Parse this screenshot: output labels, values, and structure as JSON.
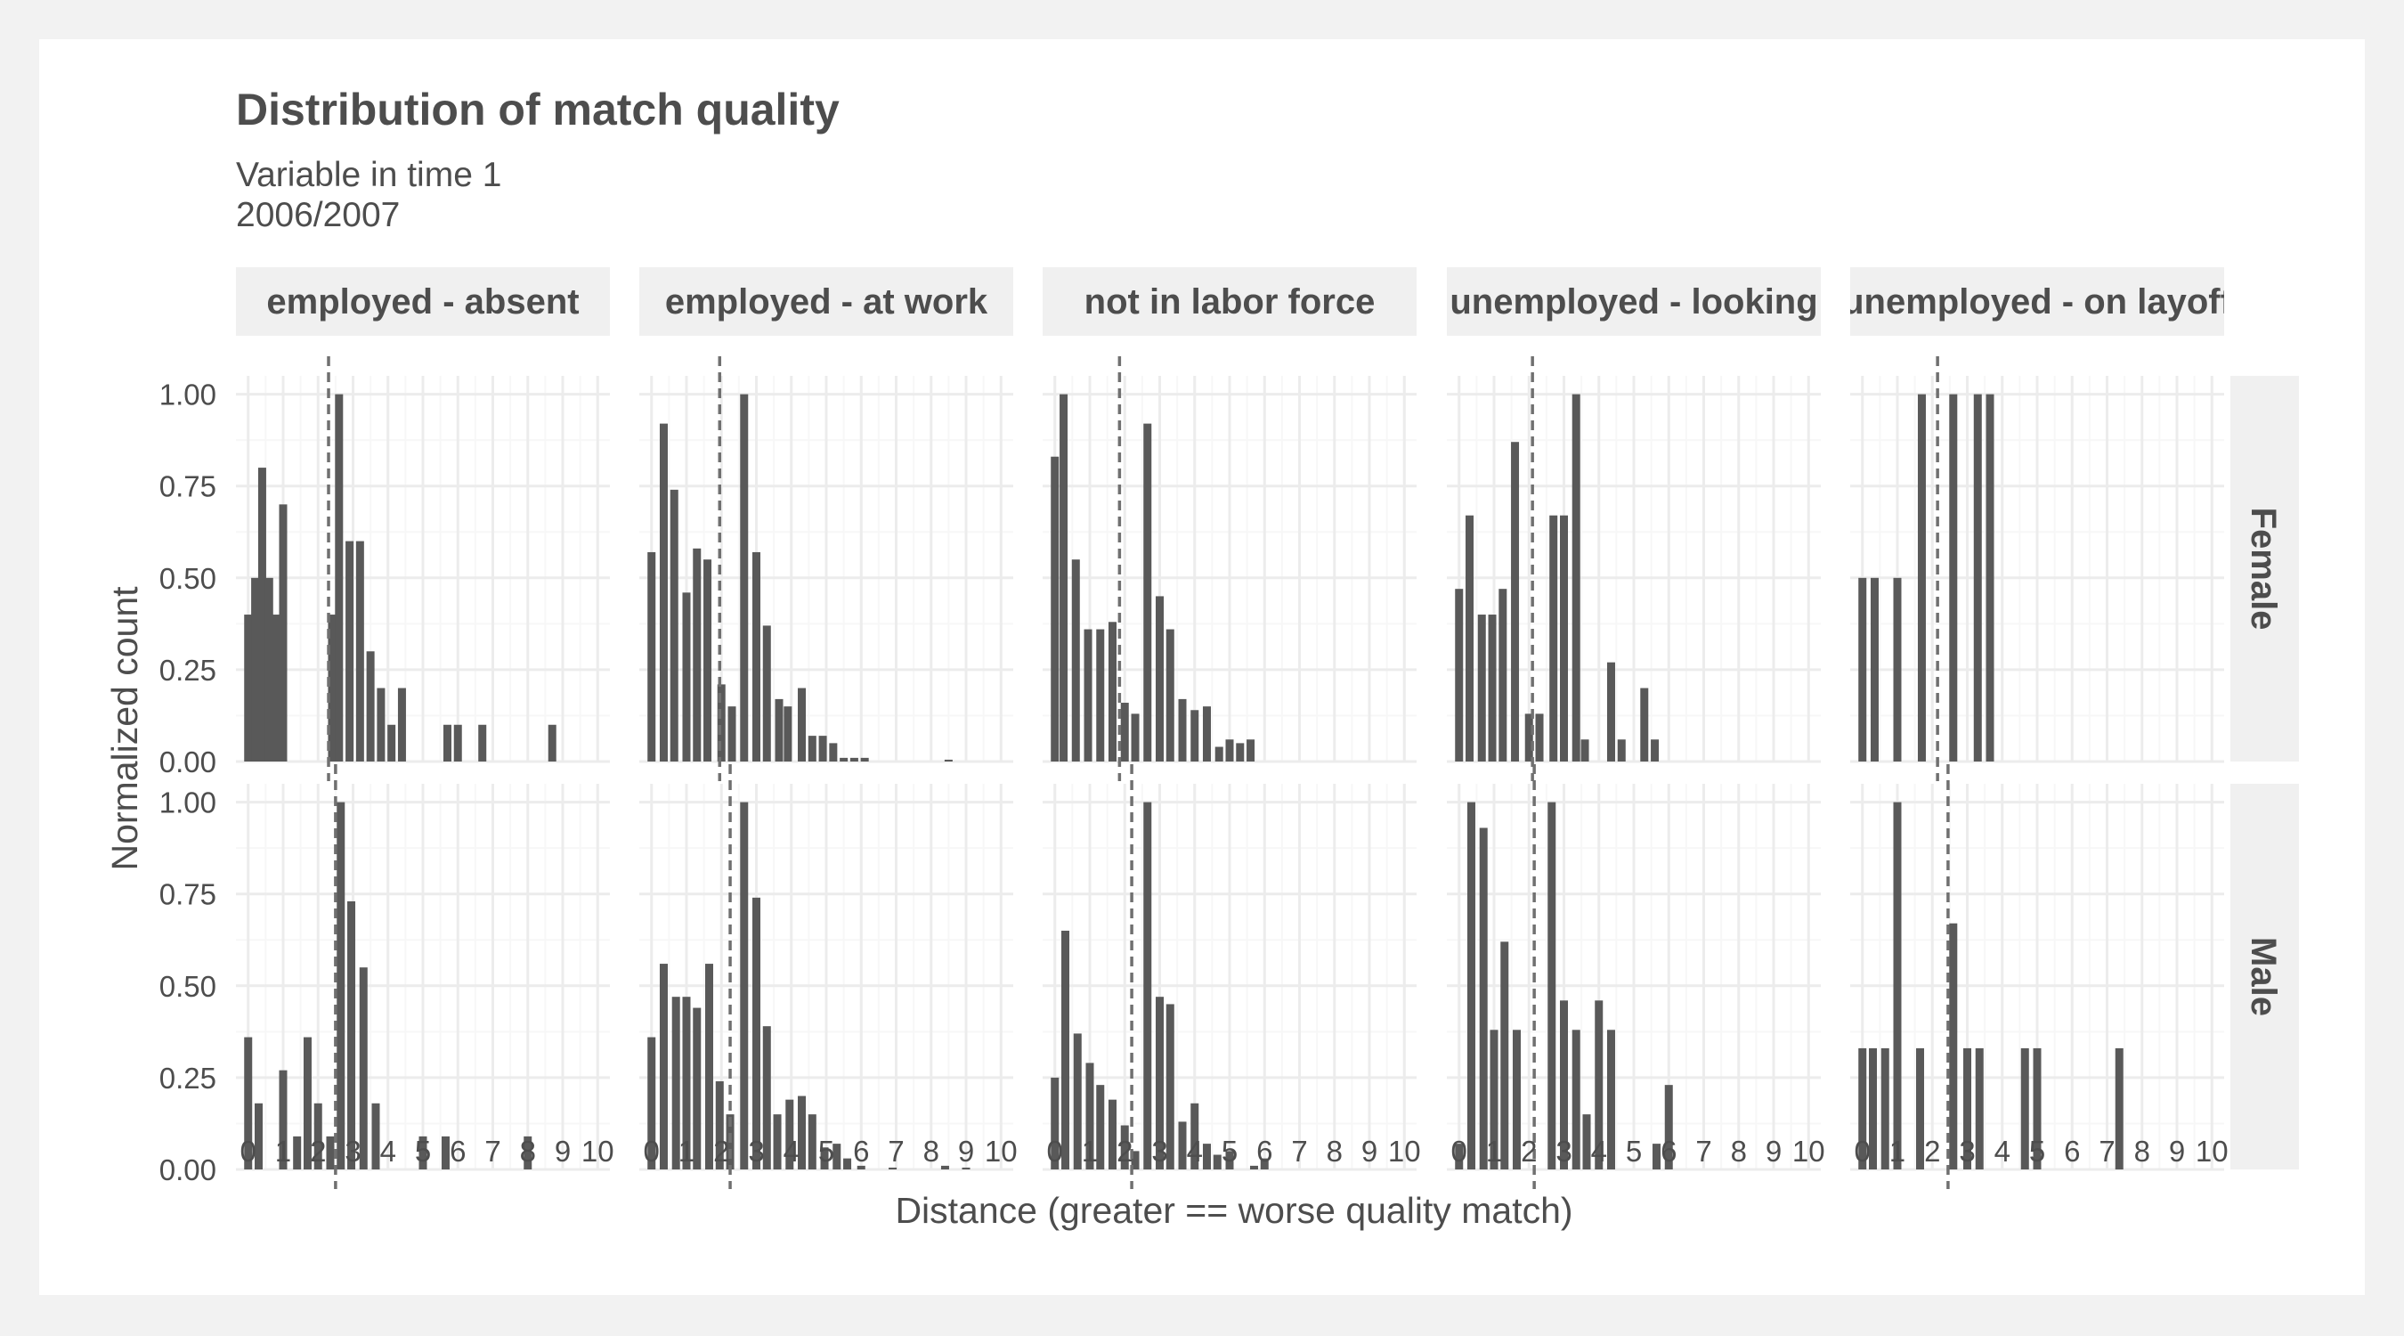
{
  "chart_data": {
    "type": "bar",
    "title": "Distribution of match quality",
    "subtitle_lines": [
      "Variable in time 1",
      "2006/2007"
    ],
    "xlabel": "Distance (greater == worse quality match)",
    "ylabel": "Normalized count",
    "xlim": [
      -0.35,
      10.35
    ],
    "ylim": [
      0,
      1.05
    ],
    "x_ticks": [
      "0",
      "1",
      "2",
      "3",
      "4",
      "5",
      "6",
      "7",
      "8",
      "9",
      "10"
    ],
    "y_ticks": [
      "0.00",
      "0.25",
      "0.50",
      "0.75",
      "1.00"
    ],
    "grid": true,
    "bar_color": "#595959",
    "mean_line_style": "dashed",
    "column_facets": [
      "employed - absent",
      "employed - at work",
      "not in labor force",
      "unemployed - looking",
      "unemployed - on layoff"
    ],
    "row_facets": [
      "Female",
      "Male"
    ],
    "panels": [
      {
        "row": "Female",
        "col": "employed - absent",
        "mean": 2.3,
        "bars": [
          [
            0,
            0.4
          ],
          [
            0.2,
            0.5
          ],
          [
            0.4,
            0.8
          ],
          [
            0.6,
            0.5
          ],
          [
            0.8,
            0.4
          ],
          [
            1.0,
            0.7
          ],
          [
            2.4,
            0.4
          ],
          [
            2.6,
            1.0
          ],
          [
            2.9,
            0.6
          ],
          [
            3.2,
            0.6
          ],
          [
            3.5,
            0.3
          ],
          [
            3.8,
            0.2
          ],
          [
            4.1,
            0.1
          ],
          [
            4.4,
            0.2
          ],
          [
            5.7,
            0.1
          ],
          [
            6.0,
            0.1
          ],
          [
            6.7,
            0.1
          ],
          [
            8.7,
            0.1
          ]
        ]
      },
      {
        "row": "Female",
        "col": "employed - at work",
        "mean": 1.95,
        "bars": [
          [
            0,
            0.57
          ],
          [
            0.35,
            0.92
          ],
          [
            0.65,
            0.74
          ],
          [
            1.0,
            0.46
          ],
          [
            1.3,
            0.58
          ],
          [
            1.6,
            0.55
          ],
          [
            2.0,
            0.21
          ],
          [
            2.3,
            0.15
          ],
          [
            2.65,
            1.0
          ],
          [
            3.0,
            0.57
          ],
          [
            3.3,
            0.37
          ],
          [
            3.65,
            0.17
          ],
          [
            3.9,
            0.15
          ],
          [
            4.3,
            0.2
          ],
          [
            4.6,
            0.07
          ],
          [
            4.9,
            0.07
          ],
          [
            5.2,
            0.05
          ],
          [
            5.5,
            0.01
          ],
          [
            5.8,
            0.01
          ],
          [
            6.1,
            0.01
          ],
          [
            8.5,
            0.005
          ]
        ]
      },
      {
        "row": "Female",
        "col": "not in labor force",
        "mean": 1.85,
        "bars": [
          [
            0,
            0.83
          ],
          [
            0.25,
            1.0
          ],
          [
            0.6,
            0.55
          ],
          [
            0.95,
            0.36
          ],
          [
            1.3,
            0.36
          ],
          [
            1.65,
            0.38
          ],
          [
            2.0,
            0.16
          ],
          [
            2.3,
            0.13
          ],
          [
            2.65,
            0.92
          ],
          [
            3.0,
            0.45
          ],
          [
            3.3,
            0.36
          ],
          [
            3.65,
            0.17
          ],
          [
            4.0,
            0.14
          ],
          [
            4.35,
            0.15
          ],
          [
            4.7,
            0.04
          ],
          [
            5.0,
            0.06
          ],
          [
            5.3,
            0.05
          ],
          [
            5.6,
            0.06
          ]
        ]
      },
      {
        "row": "Female",
        "col": "unemployed - looking",
        "mean": 2.1,
        "bars": [
          [
            0,
            0.47
          ],
          [
            0.3,
            0.67
          ],
          [
            0.65,
            0.4
          ],
          [
            0.95,
            0.4
          ],
          [
            1.25,
            0.47
          ],
          [
            1.6,
            0.87
          ],
          [
            2.0,
            0.13
          ],
          [
            2.3,
            0.13
          ],
          [
            2.7,
            0.67
          ],
          [
            3.0,
            0.67
          ],
          [
            3.35,
            1.0
          ],
          [
            3.6,
            0.06
          ],
          [
            4.35,
            0.27
          ],
          [
            4.65,
            0.06
          ],
          [
            5.3,
            0.2
          ],
          [
            5.6,
            0.06
          ]
        ]
      },
      {
        "row": "Female",
        "col": "unemployed - on layoff",
        "mean": 2.15,
        "bars": [
          [
            0,
            0.5
          ],
          [
            0.35,
            0.5
          ],
          [
            1.0,
            0.5
          ],
          [
            1.7,
            1.0
          ],
          [
            2.6,
            1.0
          ],
          [
            3.3,
            1.0
          ],
          [
            3.65,
            1.0
          ]
        ]
      },
      {
        "row": "Male",
        "col": "employed - absent",
        "mean": 2.5,
        "bars": [
          [
            0,
            0.36
          ],
          [
            0.3,
            0.18
          ],
          [
            1.0,
            0.27
          ],
          [
            1.4,
            0.09
          ],
          [
            1.7,
            0.36
          ],
          [
            2.0,
            0.18
          ],
          [
            2.35,
            0.09
          ],
          [
            2.65,
            1.0
          ],
          [
            2.95,
            0.73
          ],
          [
            3.3,
            0.55
          ],
          [
            3.65,
            0.18
          ],
          [
            5.0,
            0.09
          ],
          [
            5.65,
            0.09
          ],
          [
            8.0,
            0.09
          ]
        ]
      },
      {
        "row": "Male",
        "col": "employed - at work",
        "mean": 2.25,
        "bars": [
          [
            0,
            0.36
          ],
          [
            0.35,
            0.56
          ],
          [
            0.7,
            0.47
          ],
          [
            1.0,
            0.47
          ],
          [
            1.3,
            0.44
          ],
          [
            1.65,
            0.56
          ],
          [
            1.95,
            0.24
          ],
          [
            2.25,
            0.15
          ],
          [
            2.65,
            1.0
          ],
          [
            3.0,
            0.74
          ],
          [
            3.3,
            0.39
          ],
          [
            3.6,
            0.15
          ],
          [
            3.95,
            0.19
          ],
          [
            4.3,
            0.2
          ],
          [
            4.6,
            0.15
          ],
          [
            4.95,
            0.06
          ],
          [
            5.3,
            0.07
          ],
          [
            5.6,
            0.03
          ],
          [
            6.0,
            0.01
          ],
          [
            6.9,
            0.005
          ],
          [
            8.4,
            0.01
          ],
          [
            9.0,
            0.005
          ]
        ]
      },
      {
        "row": "Male",
        "col": "not in labor force",
        "mean": 2.2,
        "bars": [
          [
            0,
            0.25
          ],
          [
            0.3,
            0.65
          ],
          [
            0.65,
            0.37
          ],
          [
            1.0,
            0.29
          ],
          [
            1.3,
            0.23
          ],
          [
            1.65,
            0.19
          ],
          [
            2.0,
            0.12
          ],
          [
            2.3,
            0.05
          ],
          [
            2.65,
            1.0
          ],
          [
            3.0,
            0.47
          ],
          [
            3.3,
            0.45
          ],
          [
            3.65,
            0.13
          ],
          [
            4.0,
            0.18
          ],
          [
            4.35,
            0.07
          ],
          [
            4.65,
            0.04
          ],
          [
            5.0,
            0.05
          ],
          [
            5.7,
            0.01
          ],
          [
            6.0,
            0.03
          ]
        ]
      },
      {
        "row": "Male",
        "col": "unemployed - looking",
        "mean": 2.15,
        "bars": [
          [
            0,
            0.07
          ],
          [
            0.35,
            1.0
          ],
          [
            0.7,
            0.93
          ],
          [
            1.0,
            0.38
          ],
          [
            1.3,
            0.62
          ],
          [
            1.65,
            0.38
          ],
          [
            2.65,
            1.0
          ],
          [
            3.0,
            0.46
          ],
          [
            3.35,
            0.38
          ],
          [
            3.65,
            0.15
          ],
          [
            4.0,
            0.46
          ],
          [
            4.35,
            0.38
          ],
          [
            5.65,
            0.07
          ],
          [
            6.0,
            0.23
          ]
        ]
      },
      {
        "row": "Male",
        "col": "unemployed - on layoff",
        "mean": 2.45,
        "bars": [
          [
            0,
            0.33
          ],
          [
            0.3,
            0.33
          ],
          [
            0.65,
            0.33
          ],
          [
            1.0,
            1.0
          ],
          [
            1.65,
            0.33
          ],
          [
            2.6,
            0.67
          ],
          [
            3.0,
            0.33
          ],
          [
            3.35,
            0.33
          ],
          [
            4.65,
            0.33
          ],
          [
            5.0,
            0.33
          ],
          [
            7.35,
            0.33
          ]
        ]
      }
    ]
  }
}
